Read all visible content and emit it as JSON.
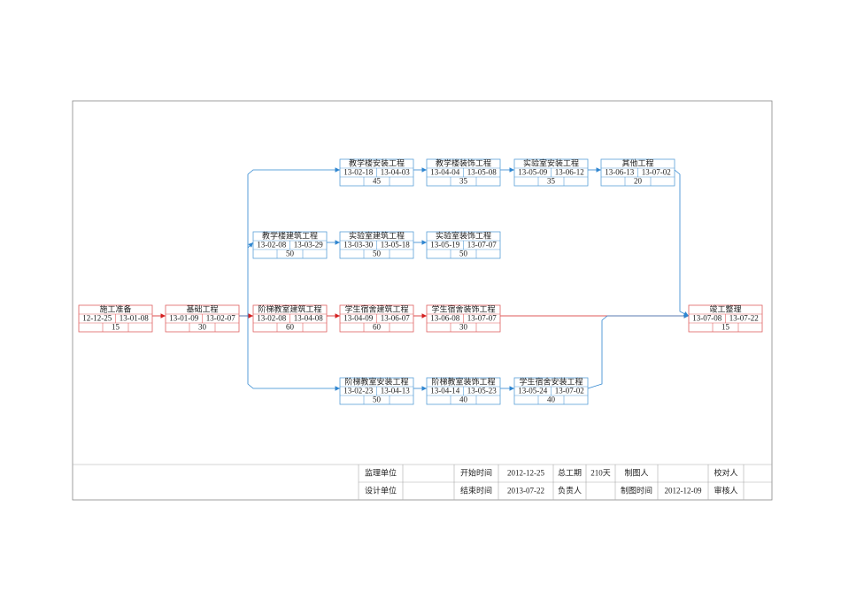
{
  "nodes": [
    {
      "name": "施工准备",
      "start": "12-12-25",
      "end": "13-01-08",
      "duration": 15
    },
    {
      "name": "基础工程",
      "start": "13-01-09",
      "end": "13-02-07",
      "duration": 30
    },
    {
      "name": "阶梯教室建筑工程",
      "start": "13-02-08",
      "end": "13-04-08",
      "duration": 60
    },
    {
      "name": "学生宿舍建筑工程",
      "start": "13-04-09",
      "end": "13-06-07",
      "duration": 60
    },
    {
      "name": "学生宿舍装饰工程",
      "start": "13-06-08",
      "end": "13-07-07",
      "duration": 30
    },
    {
      "name": "竣工整理",
      "start": "13-07-08",
      "end": "13-07-22",
      "duration": 15
    },
    {
      "name": "教学楼安装工程",
      "start": "13-02-18",
      "end": "13-04-03",
      "duration": 45
    },
    {
      "name": "教学楼装饰工程",
      "start": "13-04-04",
      "end": "13-05-08",
      "duration": 35
    },
    {
      "name": "实验室安装工程",
      "start": "13-05-09",
      "end": "13-06-12",
      "duration": 35
    },
    {
      "name": "其他工程",
      "start": "13-06-13",
      "end": "13-07-02",
      "duration": 20
    },
    {
      "name": "教学楼建筑工程",
      "start": "13-02-08",
      "end": "13-03-29",
      "duration": 50
    },
    {
      "name": "实验室建筑工程",
      "start": "13-03-30",
      "end": "13-05-18",
      "duration": 50
    },
    {
      "name": "实验室装饰工程",
      "start": "13-05-19",
      "end": "13-07-07",
      "duration": 50
    },
    {
      "name": "阶梯教室安装工程",
      "start": "13-02-23",
      "end": "13-04-13",
      "duration": 50
    },
    {
      "name": "阶梯教室装饰工程",
      "start": "13-04-14",
      "end": "13-05-23",
      "duration": 40
    },
    {
      "name": "学生宿舍安装工程",
      "start": "13-05-24",
      "end": "13-07-02",
      "duration": 40
    }
  ],
  "title_block": {
    "supervision_unit_label": "监理单位",
    "start_time_label": "开始时间",
    "start_time": "2012-12-25",
    "total_duration_label": "总工期",
    "total_duration": "210天",
    "drafter_label": "制图人",
    "checker_label": "校对人",
    "design_unit_label": "设计单位",
    "end_time_label": "结束时间",
    "end_time": "2013-07-22",
    "responsible_label": "负责人",
    "drafting_time_label": "制图时间",
    "drafting_time": "2012-12-09",
    "reviewer_label": "审核人"
  }
}
